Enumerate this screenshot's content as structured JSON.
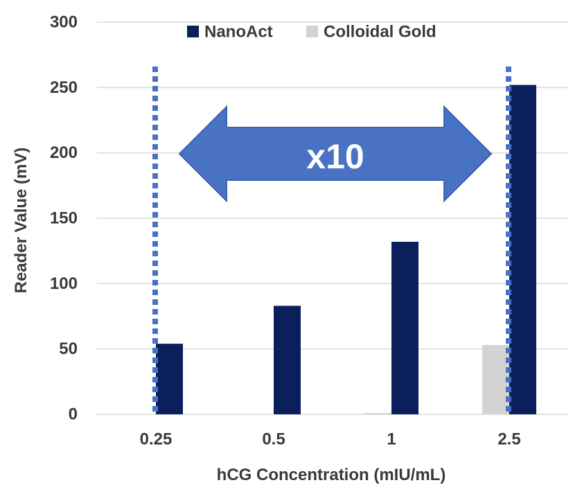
{
  "chart_data": {
    "type": "bar",
    "title": "",
    "xlabel": "hCG Concentration (mIU/mL)",
    "ylabel": "Reader Value (mV)",
    "categories": [
      "0.25",
      "0.5",
      "1",
      "2.5"
    ],
    "series": [
      {
        "name": "Colloidal Gold",
        "color": "#d3d3d3",
        "values": [
          0,
          0,
          1,
          53
        ]
      },
      {
        "name": "NanoAct",
        "color": "#0b1f5c",
        "values": [
          54,
          83,
          132,
          252
        ]
      }
    ],
    "legend_order": [
      "NanoAct",
      "Colloidal Gold"
    ],
    "ylim": [
      0,
      300
    ],
    "yticks": [
      "0",
      "50",
      "100",
      "150",
      "200",
      "250",
      "300"
    ],
    "grid": true,
    "legend_position": "top-center",
    "annotation": {
      "text": "x10",
      "type": "double-headed arrow",
      "color": "#4a72c4",
      "from_category": "0.25",
      "to_category": "2.5",
      "marker_lines_style": "dotted",
      "marker_line_color": "#4a72c4"
    }
  }
}
